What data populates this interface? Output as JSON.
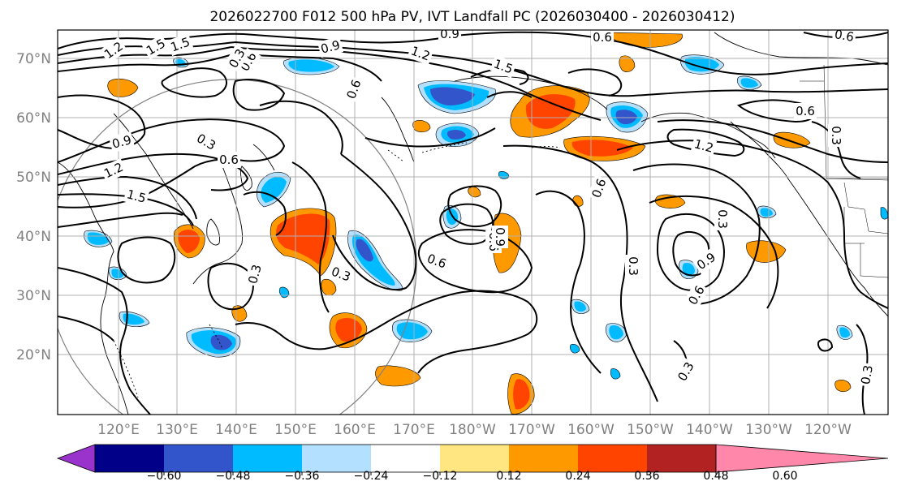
{
  "title": "2026022700 F012 500 hPa PV, IVT Landfall PC (2026030400 - 2026030412)",
  "map": {
    "lat_labels": [
      "70°N",
      "60°N",
      "50°N",
      "40°N",
      "30°N",
      "20°N"
    ],
    "lon_labels": [
      "120°E",
      "130°E",
      "140°E",
      "150°E",
      "160°E",
      "170°E",
      "180°W",
      "170°W",
      "160°W",
      "150°W",
      "140°W",
      "130°W",
      "120°W"
    ],
    "contour_labels": [
      "0.9",
      "0.6",
      "1.5",
      "1.2",
      "0.3",
      "0.9",
      "1.5",
      "1.2",
      "0.6",
      "0.9",
      "1.5",
      "1.2",
      "1.5",
      "0.3",
      "0.6",
      "0.6",
      "0.3",
      "0.6",
      "0.9",
      "0.6",
      "0.3",
      "0.3",
      "0.9",
      "0.6",
      "0.3",
      "0.3",
      "0.6",
      "1.2",
      "0.6",
      "0.6",
      "0.3",
      "0.3"
    ]
  },
  "colorbar": {
    "tick_labels": [
      "−0.60",
      "−0.48",
      "−0.36",
      "−0.24",
      "−0.12",
      "0.12",
      "0.24",
      "0.36",
      "0.48",
      "0.60"
    ],
    "colors": [
      "#9933cc",
      "#000088",
      "#3355cc",
      "#00bbff",
      "#b3e0ff",
      "#ffffff",
      "#ffe680",
      "#ff9900",
      "#ff4400",
      "#b22222",
      "#ff88aa"
    ]
  },
  "colors": {
    "orange": "#ff9900",
    "red": "#ff4400",
    "yellow": "#ffe680",
    "light_blue": "#b3e0ff",
    "cyan": "#00bbff",
    "blue": "#3355cc",
    "navy": "#000088",
    "grid": "#b0b0b0"
  }
}
